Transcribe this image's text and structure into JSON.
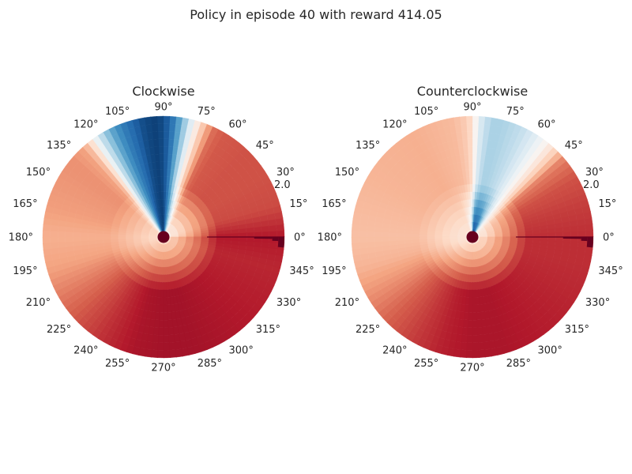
{
  "figure": {
    "title": "Policy in episode 40 with reward 414.05"
  },
  "chart_data": [
    {
      "type": "heatmap",
      "subtype": "polar",
      "title": "Clockwise",
      "theta_ticks": [
        "0°",
        "15°",
        "30°",
        "45°",
        "60°",
        "75°",
        "90°",
        "105°",
        "120°",
        "135°",
        "150°",
        "165°",
        "180°",
        "195°",
        "210°",
        "225°",
        "240°",
        "255°",
        "270°",
        "285°",
        "300°",
        "315°",
        "330°",
        "345°"
      ],
      "r_tick_label": "2.0",
      "grid": false,
      "colormap": "RdBu",
      "value_range": [
        0,
        1
      ],
      "angle_values": [
        [
          0,
          0.1
        ],
        [
          15,
          0.17
        ],
        [
          30,
          0.18
        ],
        [
          45,
          0.18
        ],
        [
          60,
          0.19
        ],
        [
          65,
          0.22
        ],
        [
          70,
          0.35
        ],
        [
          75,
          0.5
        ],
        [
          80,
          0.7
        ],
        [
          85,
          0.85
        ],
        [
          90,
          0.95
        ],
        [
          95,
          0.97
        ],
        [
          100,
          0.95
        ],
        [
          105,
          0.9
        ],
        [
          110,
          0.85
        ],
        [
          115,
          0.78
        ],
        [
          120,
          0.68
        ],
        [
          125,
          0.52
        ],
        [
          128,
          0.4
        ],
        [
          132,
          0.3
        ],
        [
          140,
          0.27
        ],
        [
          165,
          0.29
        ],
        [
          180,
          0.32
        ],
        [
          195,
          0.3
        ],
        [
          210,
          0.24
        ],
        [
          225,
          0.18
        ],
        [
          240,
          0.13
        ],
        [
          255,
          0.09
        ],
        [
          270,
          0.08
        ],
        [
          285,
          0.08
        ],
        [
          300,
          0.09
        ],
        [
          315,
          0.1
        ],
        [
          330,
          0.11
        ],
        [
          345,
          0.12
        ],
        [
          360,
          0.1
        ]
      ],
      "inner_values": [
        [
          0,
          0.5
        ],
        [
          60,
          0.5
        ],
        [
          70,
          0.62
        ],
        [
          90,
          0.98
        ],
        [
          105,
          0.95
        ],
        [
          125,
          0.55
        ],
        [
          140,
          0.42
        ],
        [
          360,
          0.42
        ]
      ],
      "dark_blocks": [
        {
          "theta": [
            -5,
            0
          ],
          "r": [
            0.95,
            1.0
          ]
        },
        {
          "theta": [
            -2,
            0
          ],
          "r": [
            0.9,
            0.95
          ]
        },
        {
          "theta": [
            -1,
            0
          ],
          "r": [
            0.75,
            0.9
          ]
        }
      ],
      "radial_line_theta": 0,
      "center_dot": true
    },
    {
      "type": "heatmap",
      "subtype": "polar",
      "title": "Counterclockwise",
      "theta_ticks": [
        "0°",
        "15°",
        "30°",
        "45°",
        "60°",
        "75°",
        "90°",
        "105°",
        "120°",
        "135°",
        "150°",
        "165°",
        "180°",
        "195°",
        "210°",
        "225°",
        "240°",
        "255°",
        "270°",
        "285°",
        "300°",
        "315°",
        "330°",
        "345°"
      ],
      "r_tick_label": "2.0",
      "grid": false,
      "colormap": "RdBu",
      "value_range": [
        0,
        1
      ],
      "angle_values": [
        [
          0,
          0.13
        ],
        [
          15,
          0.15
        ],
        [
          30,
          0.18
        ],
        [
          40,
          0.24
        ],
        [
          45,
          0.36
        ],
        [
          50,
          0.45
        ],
        [
          55,
          0.52
        ],
        [
          60,
          0.58
        ],
        [
          65,
          0.62
        ],
        [
          70,
          0.64
        ],
        [
          75,
          0.66
        ],
        [
          80,
          0.66
        ],
        [
          85,
          0.6
        ],
        [
          88,
          0.5
        ],
        [
          92,
          0.38
        ],
        [
          100,
          0.34
        ],
        [
          120,
          0.32
        ],
        [
          150,
          0.33
        ],
        [
          180,
          0.35
        ],
        [
          195,
          0.33
        ],
        [
          210,
          0.27
        ],
        [
          225,
          0.2
        ],
        [
          240,
          0.15
        ],
        [
          255,
          0.11
        ],
        [
          270,
          0.09
        ],
        [
          285,
          0.09
        ],
        [
          300,
          0.1
        ],
        [
          315,
          0.11
        ],
        [
          330,
          0.12
        ],
        [
          345,
          0.13
        ],
        [
          360,
          0.13
        ]
      ],
      "inner_values": [
        [
          0,
          0.5
        ],
        [
          50,
          0.5
        ],
        [
          70,
          0.92
        ],
        [
          85,
          0.98
        ],
        [
          95,
          0.6
        ],
        [
          110,
          0.45
        ],
        [
          360,
          0.45
        ]
      ],
      "dark_blocks": [
        {
          "theta": [
            -5,
            0
          ],
          "r": [
            0.95,
            1.0
          ]
        },
        {
          "theta": [
            -2,
            0
          ],
          "r": [
            0.9,
            0.95
          ]
        },
        {
          "theta": [
            -1,
            0
          ],
          "r": [
            0.75,
            0.9
          ]
        }
      ],
      "radial_line_theta": 0,
      "center_dot": true
    }
  ]
}
